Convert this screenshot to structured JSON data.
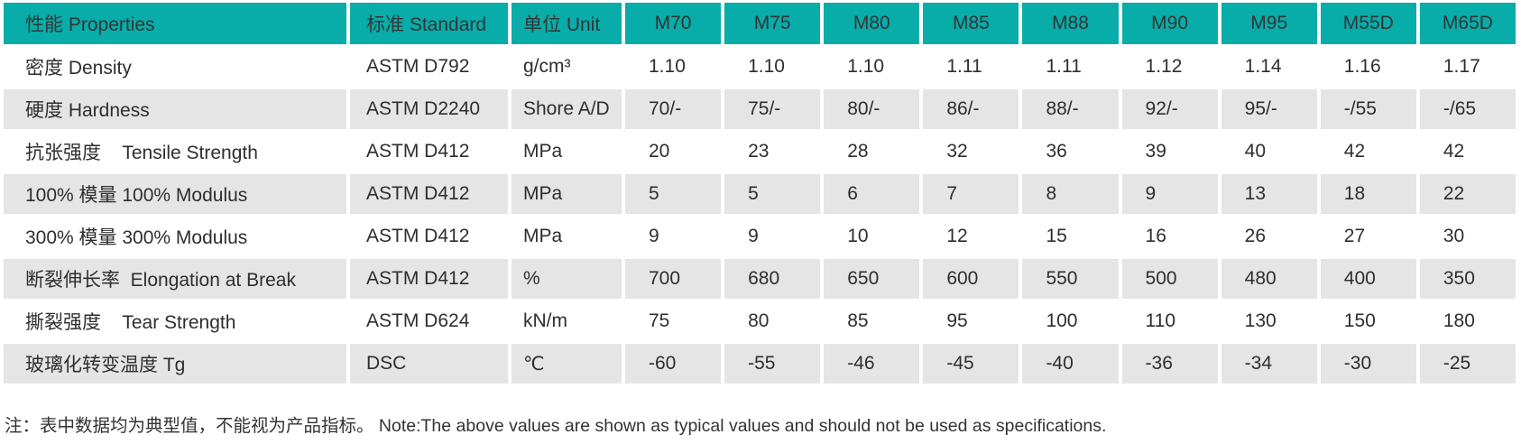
{
  "table": {
    "columns": [
      {
        "key": "property",
        "label": "性能 Properties"
      },
      {
        "key": "standard",
        "label": "标准 Standard"
      },
      {
        "key": "unit",
        "label": "单位 Unit"
      },
      {
        "key": "m70",
        "label": "M70"
      },
      {
        "key": "m75",
        "label": "M75"
      },
      {
        "key": "m80",
        "label": "M80"
      },
      {
        "key": "m85",
        "label": "M85"
      },
      {
        "key": "m88",
        "label": "M88"
      },
      {
        "key": "m90",
        "label": "M90"
      },
      {
        "key": "m95",
        "label": "M95"
      },
      {
        "key": "m55d",
        "label": "M55D"
      },
      {
        "key": "m65d",
        "label": "M65D"
      }
    ],
    "rows": [
      {
        "property": "密度 Density",
        "standard": "ASTM D792",
        "unit": "g/cm³",
        "values": [
          "1.10",
          "1.10",
          "1.10",
          "1.11",
          "1.11",
          "1.12",
          "1.14",
          "1.16",
          "1.17"
        ]
      },
      {
        "property": "硬度 Hardness",
        "standard": "ASTM D2240",
        "unit": "Shore A/D",
        "values": [
          "70/-",
          "75/-",
          "80/-",
          "86/-",
          "88/-",
          "92/-",
          "95/-",
          "-/55",
          "-/65"
        ]
      },
      {
        "property": "抗张强度    Tensile Strength",
        "standard": "ASTM D412",
        "unit": "MPa",
        "values": [
          "20",
          "23",
          "28",
          "32",
          "36",
          "39",
          "40",
          "42",
          "42"
        ]
      },
      {
        "property": "100% 模量 100% Modulus",
        "standard": "ASTM D412",
        "unit": "MPa",
        "values": [
          "5",
          "5",
          "6",
          "7",
          "8",
          "9",
          "13",
          "18",
          "22"
        ]
      },
      {
        "property": "300% 模量 300% Modulus",
        "standard": "ASTM D412",
        "unit": "MPa",
        "values": [
          "9",
          "9",
          "10",
          "12",
          "15",
          "16",
          "26",
          "27",
          "30"
        ]
      },
      {
        "property": "断裂伸长率  Elongation at Break",
        "standard": "ASTM D412",
        "unit": "%",
        "values": [
          "700",
          "680",
          "650",
          "600",
          "550",
          "500",
          "480",
          "400",
          "350"
        ]
      },
      {
        "property": "撕裂强度    Tear Strength",
        "standard": "ASTM D624",
        "unit": "kN/m",
        "values": [
          "75",
          "80",
          "85",
          "95",
          "100",
          "110",
          "130",
          "150",
          "180"
        ]
      },
      {
        "property": "玻璃化转变温度 Tg",
        "standard": "DSC",
        "unit": "℃",
        "values": [
          "-60",
          "-55",
          "-46",
          "-45",
          "-40",
          "-36",
          "-34",
          "-30",
          "-25"
        ]
      }
    ]
  },
  "note": "注：表中数据均为典型值，不能视为产品指标。 Note:The above values are shown as typical values and should not be used as specifications.",
  "colors": {
    "header_bg": "#08aca9",
    "alt_row_bg": "#e5e5e6",
    "text": "#2e2e2e"
  }
}
